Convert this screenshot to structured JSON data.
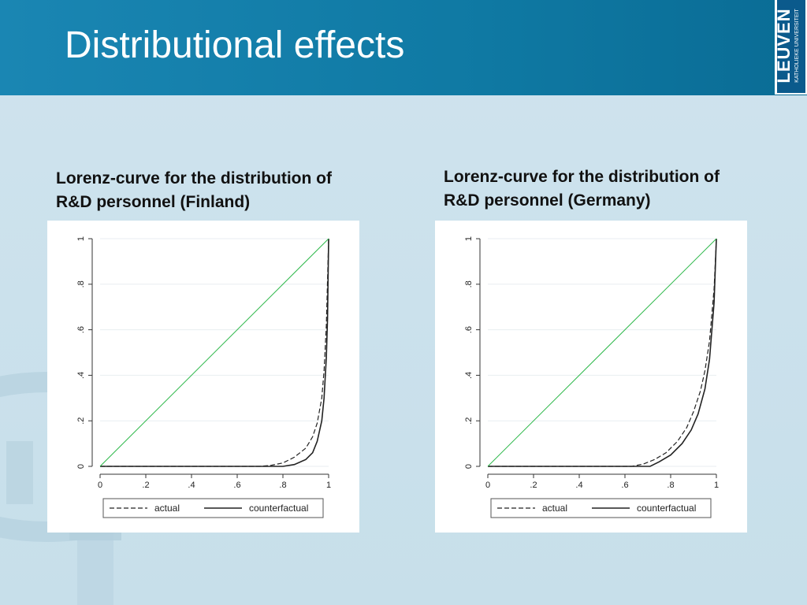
{
  "slide": {
    "title": "Distributional effects",
    "logo": {
      "word": "LEUVEN",
      "sub": "KATHOLIEKE UNIVERSITEIT",
      "color": "#0b5a8c"
    }
  },
  "colors": {
    "header": "#1280ad",
    "equality_line": "#2db84a",
    "curves": "#222222"
  },
  "chart_data": [
    {
      "type": "line",
      "title": "Lorenz-curve for the distribution of R&D personnel (Finland)",
      "title_lines": [
        "Lorenz-curve for the distribution of",
        "R&D personnel (Finland)"
      ],
      "xlim": [
        0,
        1
      ],
      "ylim": [
        0,
        1
      ],
      "x_ticks": [
        "0",
        ".2",
        ".4",
        ".6",
        ".8",
        "1"
      ],
      "y_ticks": [
        "0",
        ".2",
        ".4",
        ".6",
        ".8",
        "1"
      ],
      "grid": true,
      "legend_position": "bottom",
      "series": [
        {
          "name": "actual",
          "style": "dashed",
          "x": [
            0,
            0.7,
            0.75,
            0.8,
            0.85,
            0.9,
            0.93,
            0.95,
            0.97,
            0.98,
            0.99,
            1.0
          ],
          "y": [
            0,
            0,
            0.005,
            0.015,
            0.04,
            0.08,
            0.13,
            0.19,
            0.3,
            0.42,
            0.62,
            1.0
          ]
        },
        {
          "name": "counterfactual",
          "style": "solid",
          "x": [
            0,
            0.8,
            0.85,
            0.9,
            0.93,
            0.95,
            0.97,
            0.98,
            0.99,
            0.995,
            1.0
          ],
          "y": [
            0,
            0,
            0.008,
            0.03,
            0.06,
            0.11,
            0.2,
            0.3,
            0.48,
            0.65,
            1.0
          ]
        },
        {
          "name": "",
          "style": "equality",
          "x": [
            0,
            1
          ],
          "y": [
            0,
            1
          ]
        }
      ]
    },
    {
      "type": "line",
      "title": "Lorenz-curve for the distribution of R&D personnel (Germany)",
      "title_lines": [
        "Lorenz-curve for the distribution of",
        "R&D personnel (Germany)"
      ],
      "xlim": [
        0,
        1
      ],
      "ylim": [
        0,
        1
      ],
      "x_ticks": [
        "0",
        ".2",
        ".4",
        ".6",
        ".8",
        "1"
      ],
      "y_ticks": [
        "0",
        ".2",
        ".4",
        ".6",
        ".8",
        "1"
      ],
      "grid": true,
      "legend_position": "bottom",
      "series": [
        {
          "name": "actual",
          "style": "dashed",
          "x": [
            0,
            0.63,
            0.68,
            0.73,
            0.78,
            0.83,
            0.87,
            0.9,
            0.93,
            0.95,
            0.97,
            0.99,
            1.0
          ],
          "y": [
            0,
            0,
            0.01,
            0.03,
            0.06,
            0.11,
            0.17,
            0.24,
            0.33,
            0.42,
            0.55,
            0.78,
            1.0
          ]
        },
        {
          "name": "counterfactual",
          "style": "solid",
          "x": [
            0,
            0.71,
            0.75,
            0.8,
            0.85,
            0.89,
            0.92,
            0.95,
            0.97,
            0.99,
            1.0
          ],
          "y": [
            0,
            0,
            0.02,
            0.05,
            0.1,
            0.16,
            0.23,
            0.34,
            0.47,
            0.72,
            1.0
          ]
        },
        {
          "name": "",
          "style": "equality",
          "x": [
            0,
            1
          ],
          "y": [
            0,
            1
          ]
        }
      ]
    }
  ]
}
